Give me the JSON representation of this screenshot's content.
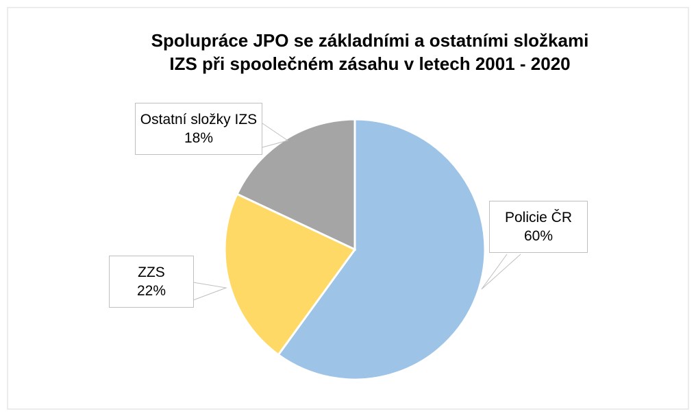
{
  "chart_data": {
    "type": "pie",
    "title": [
      "Spolupráce JPO se základními a ostatními složkami",
      "IZS při spoolečném zásahu v letech 2001 - 2020"
    ],
    "categories": [
      "Policie ČR",
      "ZZS",
      "Ostatní složky IZS"
    ],
    "values": [
      60,
      22,
      18
    ],
    "value_labels": [
      "60%",
      "22%",
      "18%"
    ],
    "colors": [
      "#9dc3e6",
      "#ffd966",
      "#a5a5a5"
    ]
  }
}
